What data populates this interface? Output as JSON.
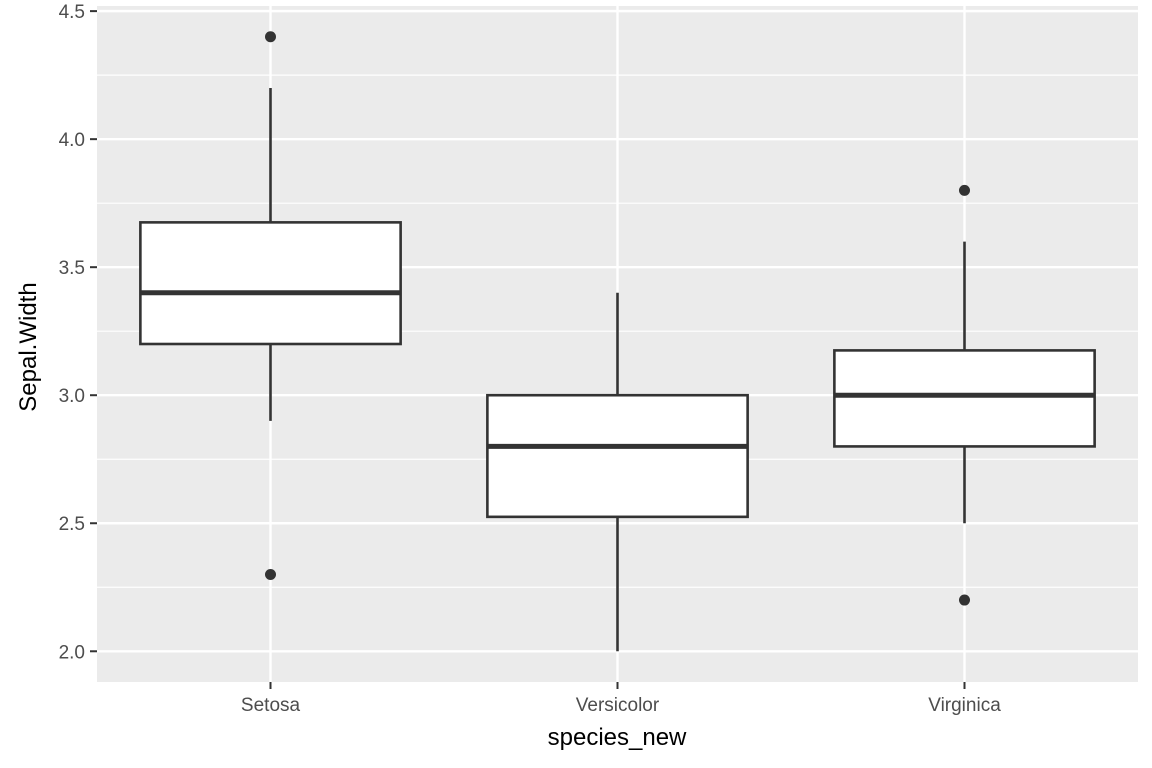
{
  "colors": {
    "panel_background": "#ebebeb",
    "grid_line": "#ffffff",
    "box_fill": "#ffffff",
    "box_line": "#333333",
    "tick_text": "#4d4d4d",
    "axis_title": "#000000"
  },
  "chart_data": {
    "type": "boxplot",
    "title": "",
    "xlabel": "species_new",
    "ylabel": "Sepal.Width",
    "ylim": [
      1.88,
      4.52
    ],
    "y_ticks": [
      2.0,
      2.5,
      3.0,
      3.5,
      4.0,
      4.5
    ],
    "y_tick_labels": [
      "2.0",
      "2.5",
      "3.0",
      "3.5",
      "4.0",
      "4.5"
    ],
    "y_minor_ticks": [
      2.25,
      2.75,
      3.25,
      3.75,
      4.25
    ],
    "grid": true,
    "legend": "none",
    "categories": [
      "Setosa",
      "Versicolor",
      "Virginica"
    ],
    "boxes": [
      {
        "category": "Setosa",
        "lower_whisker": 2.9,
        "q1": 3.2,
        "median": 3.4,
        "q3": 3.675,
        "upper_whisker": 4.2,
        "outliers": [
          4.4,
          2.3
        ]
      },
      {
        "category": "Versicolor",
        "lower_whisker": 2.0,
        "q1": 2.525,
        "median": 2.8,
        "q3": 3.0,
        "upper_whisker": 3.4,
        "outliers": []
      },
      {
        "category": "Virginica",
        "lower_whisker": 2.5,
        "q1": 2.8,
        "median": 3.0,
        "q3": 3.175,
        "upper_whisker": 3.6,
        "outliers": [
          3.8,
          2.2
        ]
      }
    ]
  }
}
